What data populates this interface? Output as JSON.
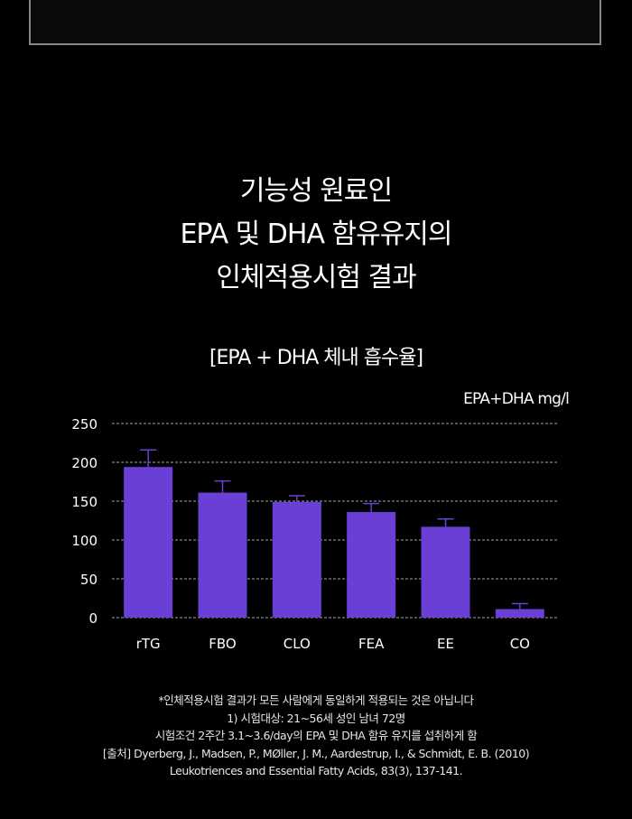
{
  "title_lines": [
    "기능성 원료인",
    "EPA 및 DHA 함유유지의",
    "인체적용시험 결과"
  ],
  "subtitle": "[EPA + DHA 체내 흡수율]",
  "colors": {
    "bar": "#6a3fd6",
    "background": "#000000",
    "grid": "#cfcfcf"
  },
  "chart_data": {
    "type": "bar",
    "title": "[EPA + DHA 체내 흡수율]",
    "ylabel": "EPA+DHA mg/l",
    "xlabel": "",
    "categories": [
      "rTG",
      "FBO",
      "CLO",
      "FEA",
      "EE",
      "CO"
    ],
    "values": [
      194,
      161,
      149,
      136,
      117,
      11
    ],
    "error_upper": [
      216,
      176,
      157,
      147,
      127,
      18
    ],
    "ylim": [
      0,
      250
    ],
    "yticks": [
      0,
      50,
      100,
      150,
      200,
      250
    ],
    "grid": true
  },
  "footnotes": [
    "*인체적용시험 결과가 모든 사람에게 동일하게 적용되는 것은 아닙니다",
    "1) 시험대상: 21~56세 성인 남녀 72명",
    "시험조건  2주간 3.1~3.6/day의 EPA 및 DHA 함유 유지를 섭취하게 함",
    "[출처] Dyerberg, J., Madsen, P., MØller, J. M., Aardestrup, I., & Schmidt, E. B. (2010)",
    "Leukotriences and Essential Fatty Acids, 83(3), 137-141."
  ]
}
